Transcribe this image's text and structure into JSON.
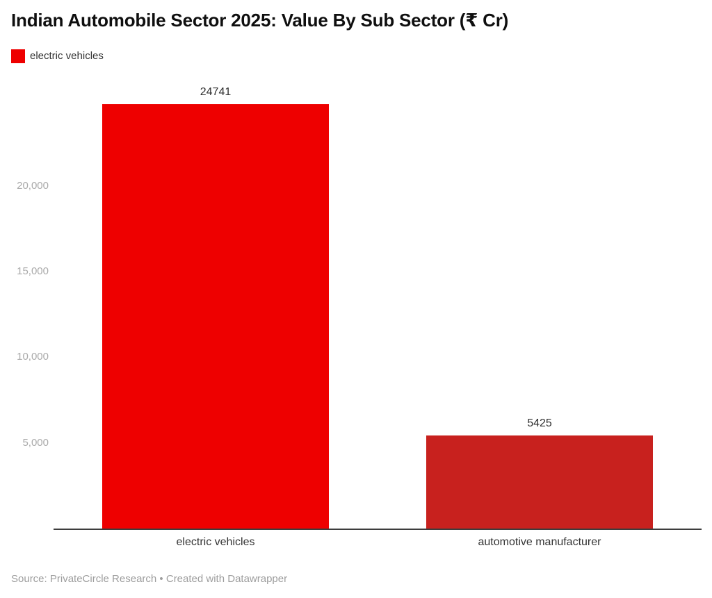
{
  "header": {
    "title": "Indian Automobile Sector 2025: Value By Sub Sector (₹ Cr)"
  },
  "legend": {
    "items": [
      {
        "label": "electric vehicles",
        "color": "#ee0000"
      }
    ]
  },
  "chart_data": {
    "type": "bar",
    "title": "Indian Automobile Sector 2025: Value By Sub Sector (₹ Cr)",
    "categories": [
      "electric vehicles",
      "automotive manufacturer"
    ],
    "values": [
      24741,
      5425
    ],
    "value_labels": [
      "24741",
      "5425"
    ],
    "bar_colors": [
      "#ee0000",
      "#c8211e"
    ],
    "xlabel": "",
    "ylabel": "",
    "ylim": [
      0,
      25000
    ],
    "yticks": {
      "values": [
        5000,
        10000,
        15000,
        20000
      ],
      "labels": [
        "5,000",
        "10,000",
        "15,000",
        "20,000"
      ]
    },
    "grid": false,
    "legend_position": "top-left",
    "legend_entries": [
      "electric vehicles"
    ]
  },
  "footer": {
    "source": "Source: PrivateCircle Research",
    "separator": "•",
    "attribution": "Created with Datawrapper"
  }
}
